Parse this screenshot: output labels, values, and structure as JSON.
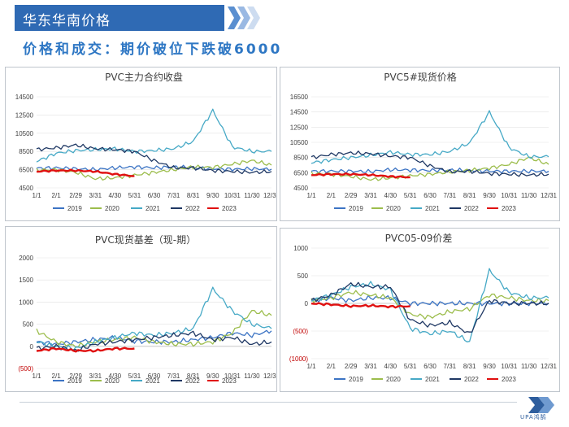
{
  "header": {
    "title": "华东华南价格",
    "subtitle": "价格和成交：期价破位下跌破6000"
  },
  "logo": {
    "text": "UPA鸿鹄"
  },
  "colors": {
    "header": "#2f6ab4",
    "subtitle": "#2e77c4",
    "2019": "#3c74c4",
    "2020": "#9cbd4c",
    "2021": "#46a9c6",
    "2022": "#1f3864",
    "2023": "#e01010",
    "neg": "#c00000"
  },
  "chart_data": [
    {
      "id": "c1",
      "type": "line",
      "title": "PVC主力合约收盘",
      "yticks": [
        "14500",
        "12500",
        "10500",
        "8500",
        "6500",
        "4500"
      ],
      "ylim": [
        4500,
        14500
      ],
      "xticks": [
        "1/1",
        "2/1",
        "2/29",
        "3/31",
        "4/30",
        "5/31",
        "6/30",
        "7/31",
        "8/31",
        "9/30",
        "10/31",
        "11/30",
        "12/31"
      ],
      "series": [
        {
          "name": "2019",
          "values": [
            6650,
            6700,
            6600,
            6500,
            6700,
            6800,
            6700,
            6800,
            6700,
            6600,
            6550,
            6600,
            6550
          ]
        },
        {
          "name": "2020",
          "values": [
            6450,
            6500,
            6200,
            5500,
            5600,
            5900,
            6200,
            6500,
            6800,
            6750,
            7100,
            7500,
            7000
          ]
        },
        {
          "name": "2021",
          "values": [
            7400,
            8300,
            8600,
            8700,
            8800,
            8500,
            8600,
            8800,
            9600,
            13000,
            9000,
            8500,
            8500
          ]
        },
        {
          "name": "2022",
          "values": [
            8700,
            8900,
            9200,
            8800,
            8700,
            8500,
            7500,
            6700,
            6700,
            6400,
            6300,
            6200,
            6300
          ]
        },
        {
          "name": "2023",
          "values": [
            6300,
            6400,
            6400,
            6300,
            6000,
            5800
          ]
        }
      ]
    },
    {
      "id": "c2",
      "type": "line",
      "title": "PVC5#现货价格",
      "yticks": [
        "16500",
        "14500",
        "12500",
        "10500",
        "8500",
        "6500",
        "4500"
      ],
      "ylim": [
        4500,
        16500
      ],
      "xticks": [
        "1/1",
        "2/1",
        "2/29",
        "3/31",
        "4/30",
        "5/31",
        "6/30",
        "7/31",
        "8/31",
        "9/30",
        "10/31",
        "11/30",
        "12/31"
      ],
      "series": [
        {
          "name": "2019",
          "values": [
            6700,
            6700,
            6700,
            6650,
            6900,
            6850,
            6800,
            6850,
            6800,
            6700,
            6700,
            6700,
            6700
          ]
        },
        {
          "name": "2020",
          "values": [
            6400,
            6300,
            6000,
            5600,
            5800,
            6100,
            6300,
            6600,
            6800,
            7100,
            7600,
            8500,
            7600
          ]
        },
        {
          "name": "2021",
          "values": [
            7800,
            8200,
            8500,
            8800,
            9200,
            8900,
            8900,
            9300,
            10400,
            14500,
            9800,
            8600,
            8600
          ]
        },
        {
          "name": "2022",
          "values": [
            8500,
            8900,
            9100,
            9000,
            8700,
            8500,
            7400,
            6600,
            6700,
            6400,
            6300,
            6200,
            6300
          ]
        },
        {
          "name": "2023",
          "values": [
            6200,
            6300,
            6300,
            6200,
            6000,
            5900
          ]
        }
      ]
    },
    {
      "id": "c3",
      "type": "line",
      "title": "PVC现货基差（现-期）",
      "yticks": [
        "2000",
        "1500",
        "1000",
        "500",
        "0",
        "(500)"
      ],
      "ylim": [
        -500,
        2000
      ],
      "xticks": [
        "1/1",
        "2/1",
        "2/29",
        "3/31",
        "4/30",
        "5/31",
        "6/30",
        "7/31",
        "8/31",
        "9/30",
        "10/31",
        "11/30",
        "12/31"
      ],
      "series": [
        {
          "name": "2019",
          "values": [
            100,
            50,
            100,
            150,
            200,
            120,
            100,
            100,
            150,
            200,
            300,
            250,
            350
          ]
        },
        {
          "name": "2020",
          "values": [
            350,
            100,
            0,
            100,
            150,
            200,
            100,
            50,
            50,
            100,
            300,
            800,
            700
          ]
        },
        {
          "name": "2021",
          "values": [
            100,
            0,
            -50,
            100,
            200,
            300,
            250,
            300,
            400,
            1300,
            800,
            500,
            400
          ]
        },
        {
          "name": "2022",
          "values": [
            -50,
            0,
            -100,
            50,
            100,
            150,
            200,
            250,
            300,
            150,
            200,
            50,
            100
          ]
        },
        {
          "name": "2023",
          "values": [
            -100,
            -50,
            -100,
            -100,
            -50,
            -50
          ]
        }
      ]
    },
    {
      "id": "c4",
      "type": "line",
      "title": "PVC05-09价差",
      "yticks": [
        "1000",
        "500",
        "0",
        "(500)",
        "(1000)"
      ],
      "ylim": [
        -1000,
        1000
      ],
      "xticks": [
        "1/1",
        "2/1",
        "2/29",
        "3/31",
        "4/30",
        "5/31",
        "6/30",
        "7/31",
        "8/31",
        "9/30",
        "10/31",
        "11/30",
        "12/31"
      ],
      "series": [
        {
          "name": "2019",
          "values": [
            50,
            100,
            50,
            100,
            100,
            0,
            0,
            0,
            0,
            0,
            0,
            0,
            0
          ]
        },
        {
          "name": "2020",
          "values": [
            50,
            100,
            200,
            150,
            100,
            -200,
            -250,
            -150,
            -100,
            150,
            100,
            50,
            50
          ]
        },
        {
          "name": "2021",
          "values": [
            50,
            150,
            300,
            350,
            250,
            -450,
            -550,
            -500,
            -700,
            600,
            200,
            100,
            100
          ]
        },
        {
          "name": "2022",
          "values": [
            50,
            150,
            350,
            300,
            300,
            -300,
            -400,
            -350,
            -550,
            50,
            0,
            0,
            0
          ]
        },
        {
          "name": "2023",
          "values": [
            0,
            -20,
            -50,
            -40,
            -60,
            -50
          ]
        }
      ]
    }
  ],
  "legend": [
    "2019",
    "2020",
    "2021",
    "2022",
    "2023"
  ]
}
